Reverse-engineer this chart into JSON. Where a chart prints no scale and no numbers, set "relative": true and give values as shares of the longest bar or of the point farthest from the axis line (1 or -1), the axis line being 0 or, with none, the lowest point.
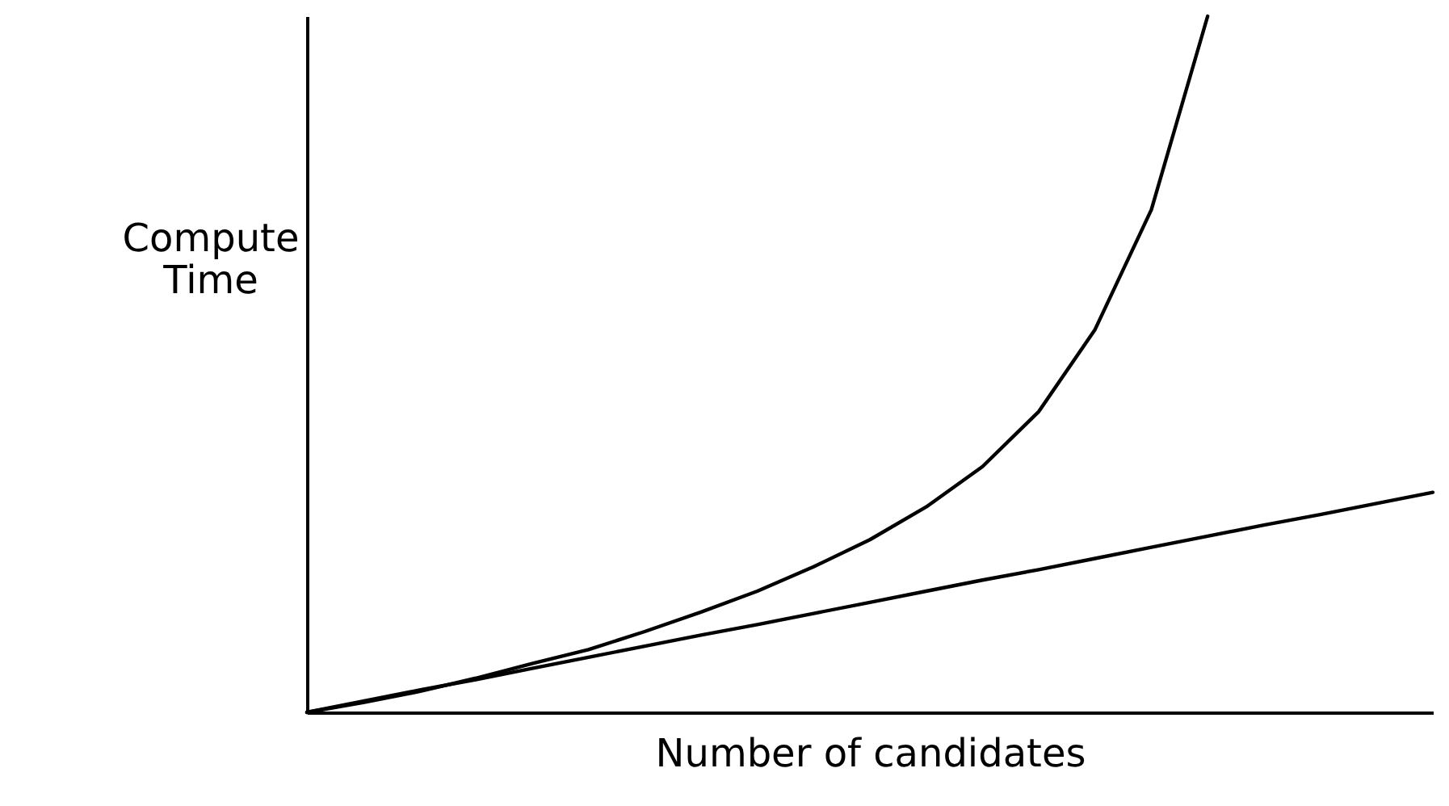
{
  "chart_data": {
    "type": "line",
    "relative": true,
    "xlabel": "Number of candidates",
    "ylabel": "Compute Time",
    "tick_labels": false,
    "grid": false,
    "marker": "none",
    "line_style": "solid",
    "categories": [
      null,
      null,
      null,
      null,
      null,
      null,
      null,
      null,
      null,
      null,
      null,
      null,
      null,
      null,
      null,
      null,
      null,
      null,
      null,
      null,
      null
    ],
    "series": [
      {
        "color": "#000000",
        "values": [
          0,
          0.014,
          0.03,
          0.049,
          0.07,
          0.09,
          0.116,
          0.144,
          0.174,
          0.209,
          0.248,
          0.295,
          0.353,
          0.432,
          0.55,
          0.722,
          1.0,
          null,
          null,
          null,
          null
        ]
      },
      {
        "color": "#000000",
        "values": [
          0,
          0.016,
          0.032,
          0.047,
          0.063,
          0.079,
          0.095,
          0.111,
          0.126,
          0.142,
          0.158,
          0.174,
          0.19,
          0.205,
          0.221,
          0.237,
          0.253,
          0.269,
          0.284,
          0.3,
          0.316
        ]
      }
    ]
  }
}
